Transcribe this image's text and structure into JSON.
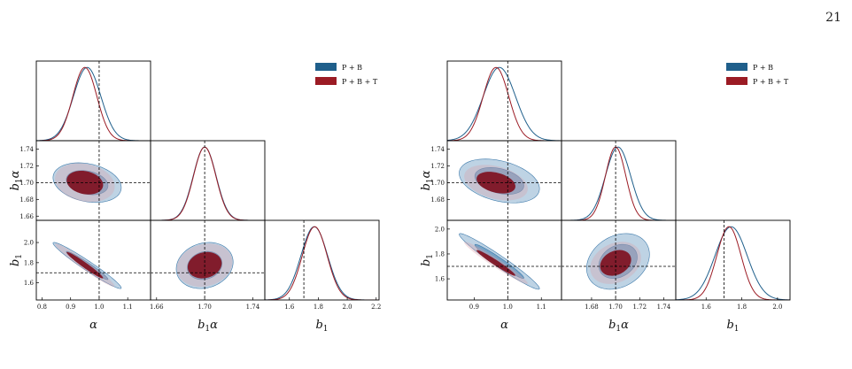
{
  "page": {
    "number": "21"
  },
  "colors": {
    "pb": "#1f5f8b",
    "pbt": "#9b1b24",
    "truth_line": "#000000"
  },
  "chart_data": [
    {
      "type": "corner",
      "parameters": [
        {
          "symbol": "α",
          "base": "",
          "sub": "",
          "suffix": "α",
          "truth": 1.0,
          "range": [
            0.78,
            1.18
          ],
          "ticks": [
            "0.8",
            "0.9",
            "1.0",
            "1.1"
          ],
          "tick_values": [
            0.8,
            0.9,
            1.0,
            1.1
          ]
        },
        {
          "base": "b",
          "sub": "1",
          "suffix": "α",
          "truth": 1.7,
          "range": [
            1.655,
            1.75
          ],
          "ticks": [
            "1.66",
            "1.68",
            "1.70",
            "1.72",
            "1.74"
          ],
          "tick_values": [
            1.66,
            1.68,
            1.7,
            1.72,
            1.74
          ],
          "x_ticks": [
            "1.66",
            "1.70",
            "1.74"
          ],
          "x_tick_values": [
            1.66,
            1.7,
            1.74
          ]
        },
        {
          "base": "b",
          "sub": "1",
          "suffix": "",
          "truth": 1.7,
          "range": [
            1.43,
            2.22
          ],
          "ticks": [
            "1.6",
            "1.8",
            "2.0",
            "2.2"
          ],
          "tick_values": [
            1.6,
            1.8,
            2.0,
            2.2
          ],
          "y_ticks": [
            "1.6",
            "1.8",
            "2.0"
          ],
          "y_tick_values": [
            1.6,
            1.8,
            2.0
          ]
        }
      ],
      "legend": [
        {
          "name": "P + B",
          "color_key": "pb"
        },
        {
          "name": "P + B + T",
          "color_key": "pbt"
        }
      ],
      "series": [
        {
          "name": "P + B",
          "means": [
            0.958,
            1.7,
            1.772
          ],
          "sigmas": [
            0.048,
            0.0095,
            0.092
          ],
          "correlations": {
            "0-1": -0.25,
            "0-2": -0.97,
            "1-2": 0.15
          }
        },
        {
          "name": "P + B + T",
          "means": [
            0.95,
            1.7,
            1.775
          ],
          "sigmas": [
            0.042,
            0.0093,
            0.086
          ],
          "correlations": {
            "0-1": -0.2,
            "0-2": -0.97,
            "1-2": 0.15
          }
        }
      ]
    },
    {
      "type": "corner",
      "parameters": [
        {
          "base": "",
          "sub": "",
          "suffix": "α",
          "truth": 1.0,
          "range": [
            0.82,
            1.16
          ],
          "ticks": [
            "0.9",
            "1.0",
            "1.1"
          ],
          "tick_values": [
            0.9,
            1.0,
            1.1
          ]
        },
        {
          "base": "b",
          "sub": "1",
          "suffix": "α",
          "truth": 1.7,
          "range": [
            1.655,
            1.75
          ],
          "ticks": [
            "1.68",
            "1.70",
            "1.72",
            "1.74"
          ],
          "tick_values": [
            1.68,
            1.7,
            1.72,
            1.74
          ]
        },
        {
          "base": "b",
          "sub": "1",
          "suffix": "",
          "truth": 1.7,
          "range": [
            1.43,
            2.07
          ],
          "ticks": [
            "1.6",
            "1.8",
            "2.0"
          ],
          "tick_values": [
            1.6,
            1.8,
            2.0
          ]
        }
      ],
      "legend": [
        {
          "name": "P + B",
          "color_key": "pb"
        },
        {
          "name": "P + B + T",
          "color_key": "pbt"
        }
      ],
      "series": [
        {
          "name": "P + B",
          "means": [
            0.975,
            1.702,
            1.74
          ],
          "sigmas": [
            0.048,
            0.0105,
            0.09
          ],
          "correlations": {
            "0-1": -0.35,
            "0-2": -0.97,
            "1-2": 0.25
          }
        },
        {
          "name": "P + B + T",
          "means": [
            0.965,
            1.7,
            1.728
          ],
          "sigmas": [
            0.038,
            0.0085,
            0.068
          ],
          "correlations": {
            "0-1": -0.35,
            "0-2": -0.97,
            "1-2": 0.25
          }
        }
      ]
    }
  ]
}
